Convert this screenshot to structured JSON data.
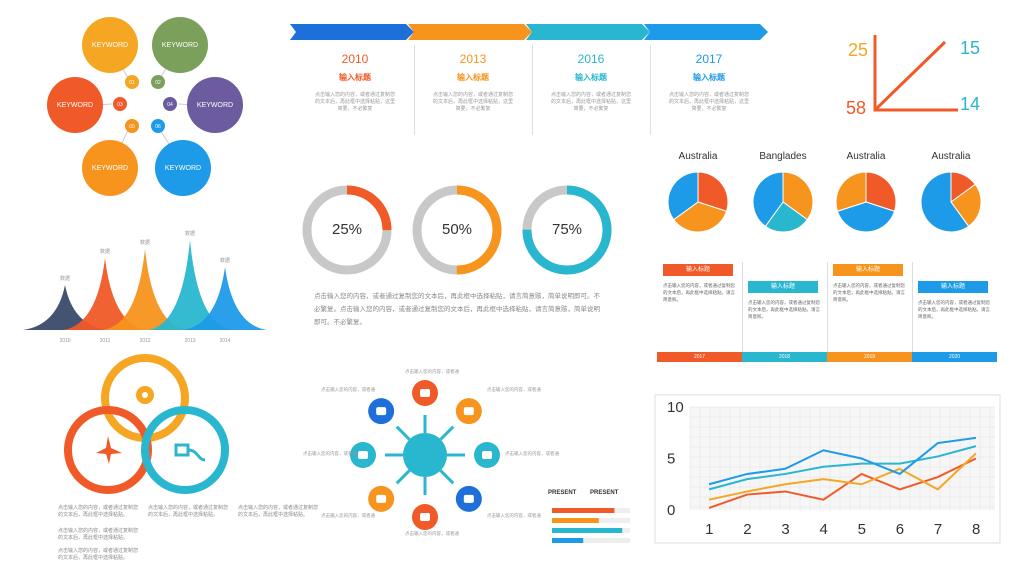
{
  "bubbles": {
    "petals": [
      {
        "label": "KEYWORD",
        "color": "#F5A623"
      },
      {
        "label": "KEYWORD",
        "color": "#7BA05B"
      },
      {
        "label": "KEYWORD",
        "color": "#F05A28"
      },
      {
        "label": "KEYWORD",
        "color": "#6C5B9E"
      },
      {
        "label": "KEYWORD",
        "color": "#F7941D"
      },
      {
        "label": "KEYWORD",
        "color": "#1E9BE8"
      }
    ],
    "hubs": [
      "01",
      "02",
      "03",
      "04",
      "05",
      "06"
    ]
  },
  "timeline": {
    "items": [
      {
        "year": "2010",
        "title": "输入标题",
        "desc": "点击输入您的内容，或者通过复制您的文本后，再此框中选择粘贴，这里简要，不必繁复",
        "color": "#F05A28"
      },
      {
        "year": "2013",
        "title": "输入标题",
        "desc": "点击输入您的内容，或者通过复制您的文本后，再此框中选择粘贴，这里简要，不必繁复",
        "color": "#F7941D"
      },
      {
        "year": "2016",
        "title": "输入标题",
        "desc": "点击输入您的内容，或者通过复制您的文本后，再此框中选择粘贴，这里简要，不必繁复",
        "color": "#29B6CF"
      },
      {
        "year": "2017",
        "title": "输入标题",
        "desc": "点击输入您的内容，或者通过复制您的文本后，再此框中选择粘贴，这里简要，不必繁复",
        "color": "#1E9BE8"
      }
    ]
  },
  "corner_numbers": {
    "top_left": "25",
    "top_right": "15",
    "bottom_left": "58",
    "bottom_right": "14"
  },
  "donut_text": "点击输入您的内容，或者通过复制您的文本后，再此框中选择粘贴，请言简意赅，简单说明即可。不必繁复。点击输入您的内容，或者通过复制您的文本后，再此框中选择粘贴，请言简意赅，简单说明即可。不必繁复。",
  "cards": [
    {
      "tag": "输入标题",
      "color": "#F05A28",
      "desc": "点击输入您的内容，或者通过复制您的文本后，再此框中选择粘贴。请言简意赅。",
      "year": "2017"
    },
    {
      "tag": "输入标题",
      "color": "#29B6CF",
      "desc": "点击输入您的内容，或者通过复制您的文本后，再此框中选择粘贴。请言简意赅。",
      "year": "2018"
    },
    {
      "tag": "输入标题",
      "color": "#F7941D",
      "desc": "点击输入您的内容，或者通过复制您的文本后，再此框中选择粘贴。请言简意赅。",
      "year": "2019"
    },
    {
      "tag": "输入标题",
      "color": "#1E9BE8",
      "desc": "点击输入您的内容，或者通过复制您的文本后，再此框中选择粘贴。请言简意赅。",
      "year": "2020"
    }
  ],
  "mountain_labels": [
    "2010",
    "2011",
    "2012",
    "2013",
    "2014"
  ],
  "mountain_top_labels": [
    "数据",
    "数据",
    "数据",
    "数据",
    "数据"
  ],
  "venn_icons": [
    "tag-icon",
    "plane-icon",
    "plug-icon"
  ],
  "venn_text": [
    "点击输入您的内容，或者通过复制您的文本后，再此框中选择粘贴。",
    "点击输入您的内容，或者通过复制您的文本后，再此框中选择粘贴。",
    "点击输入您的内容，或者通过复制您的文本后，再此框中选择粘贴。"
  ],
  "hub_icons": [
    "rocket-icon",
    "home-icon",
    "cup-icon",
    "gamepad-icon",
    "flag-icon",
    "megaphone-icon",
    "truck-icon",
    "airplane-icon"
  ],
  "hub_text": "点击输入您的内容，或者通过复制您的文本后。不必繁复",
  "present": {
    "left": "PRESENT",
    "right": "PRESENT"
  },
  "chart_data": [
    {
      "type": "pie",
      "titles": [
        "Australia",
        "Banglades",
        "Australia",
        "Australia"
      ],
      "pies": [
        {
          "values": [
            30,
            35,
            35
          ],
          "colors": [
            "#F05A28",
            "#F7941D",
            "#1E9BE8"
          ]
        },
        {
          "values": [
            35,
            25,
            40
          ],
          "colors": [
            "#F7941D",
            "#29B6CF",
            "#1E9BE8"
          ]
        },
        {
          "values": [
            30,
            40,
            30
          ],
          "colors": [
            "#F05A28",
            "#1E9BE8",
            "#F7941D"
          ]
        },
        {
          "values": [
            15,
            25,
            60
          ],
          "colors": [
            "#F05A28",
            "#F7941D",
            "#1E9BE8"
          ]
        }
      ]
    },
    {
      "type": "donut",
      "values": [
        25,
        50,
        75
      ],
      "labels": [
        "25%",
        "50%",
        "75%"
      ],
      "colors": [
        "#F05A28",
        "#F7941D",
        "#29B6CF"
      ]
    },
    {
      "type": "line",
      "x": [
        1,
        2,
        3,
        4,
        5,
        6,
        7,
        8
      ],
      "ylim": [
        0,
        10
      ],
      "yticks": [
        0,
        5,
        10
      ],
      "series": [
        {
          "color": "#F05A28",
          "values": [
            0.2,
            1.5,
            1.8,
            1.0,
            3.5,
            2.0,
            3.2,
            5.0
          ]
        },
        {
          "color": "#F5A623",
          "values": [
            1.0,
            1.8,
            2.5,
            3.0,
            2.5,
            4.0,
            2.0,
            5.5
          ]
        },
        {
          "color": "#29B6CF",
          "values": [
            2.0,
            3.0,
            3.5,
            4.2,
            4.5,
            4.5,
            5.2,
            6.2
          ]
        },
        {
          "color": "#1E9BE8",
          "values": [
            2.5,
            3.5,
            4.0,
            5.8,
            5.0,
            3.5,
            6.5,
            7.0
          ]
        }
      ]
    },
    {
      "type": "area",
      "categories": [
        "2010",
        "2011",
        "2012",
        "2013",
        "2014"
      ],
      "values": [
        5,
        8,
        9,
        10,
        7
      ],
      "colors": [
        "#3B4A6B",
        "#F05A28",
        "#F7941D",
        "#29B6CF",
        "#1E9BE8"
      ]
    },
    {
      "type": "bar",
      "values": [
        80,
        60,
        90,
        40
      ],
      "colors": [
        "#F05A28",
        "#F7941D",
        "#29B6CF",
        "#1E9BE8"
      ]
    }
  ]
}
